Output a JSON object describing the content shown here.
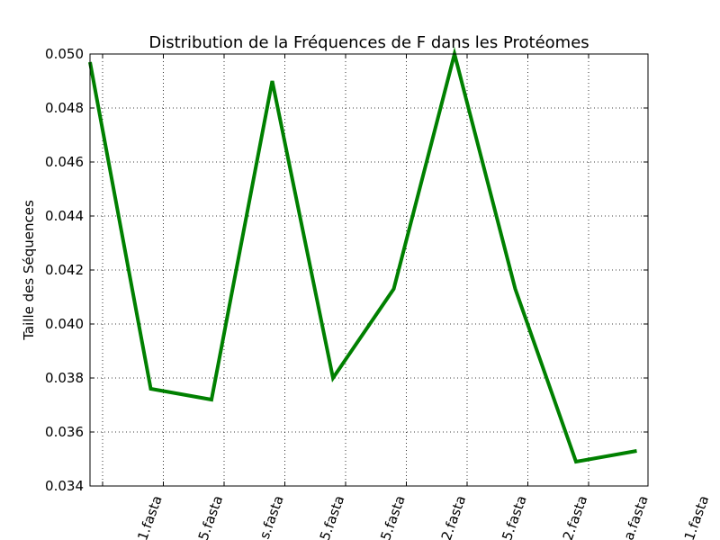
{
  "chart_data": {
    "type": "line",
    "title": "Distribution de la Fréquences de F dans les Protéomes",
    "xlabel": "",
    "ylabel": "Taille des Séquences",
    "ylim": [
      0.034,
      0.05
    ],
    "yticks": [
      "0.034",
      "0.036",
      "0.038",
      "0.040",
      "0.042",
      "0.044",
      "0.046",
      "0.048",
      "0.050"
    ],
    "categories": [
      "1.fasta",
      "5.fasta",
      "s.fasta",
      "5.fasta",
      "5.fasta",
      "2.fasta",
      "5.fasta",
      "2.fasta",
      "a.fasta",
      "1.fasta"
    ],
    "values": [
      0.0497,
      0.0376,
      0.0372,
      0.049,
      0.038,
      0.0413,
      0.05,
      0.0413,
      0.0349,
      0.0353
    ],
    "grid": true,
    "line_color": "#008000"
  }
}
